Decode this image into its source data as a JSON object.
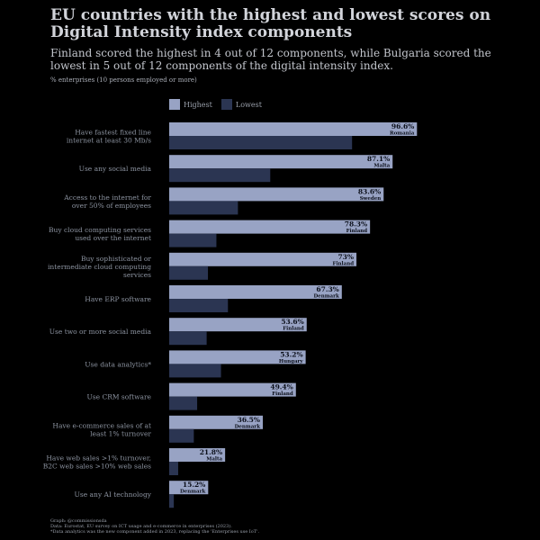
{
  "title": "EU countries with the highest and lowest scores on Digital Intensity index components",
  "subtitle": "Finland scored the highest in 4 out of 12 components, while Bulgaria scored the lowest in 5 out of 12 components of the digital intensity index.",
  "unit_note": "% enterprises (10 persons employed or more)",
  "colors": {
    "highest": "#98a3c4",
    "lowest": "#2b3552",
    "label_text": "#8c93a0"
  },
  "legend": {
    "highest": "Highest",
    "lowest": "Lowest"
  },
  "footer": {
    "graph": "Graph: @commissionsda",
    "data": "Data: Eurostat, EU survey on ICT usage and e-commerce in enterprises (2023).",
    "note": "*Data analytics was the new component added in 2023, replacing the 'Enterprises use IoT'."
  },
  "chart_data": {
    "type": "bar",
    "orientation": "horizontal",
    "xlim": [
      0,
      100
    ],
    "grid": false,
    "legend_position": "top",
    "categories": [
      "Have fastest fixed line internet at least 30 Mb/s",
      "Use any social media",
      "Access to the internet for over 50% of employees",
      "Buy cloud computing services used over the internet",
      "Buy sophisticated or intermediate cloud computing services",
      "Have ERP software",
      "Use two or more social media",
      "Use data analytics*",
      "Use CRM software",
      "Have e-commerce sales of at least 1% turnover",
      "Have web sales >1% turnover, B2C web sales >10% web sales",
      "Use any AI technology"
    ],
    "series": [
      {
        "name": "Highest",
        "values": [
          96.6,
          87.1,
          83.6,
          78.3,
          73,
          67.3,
          53.6,
          53.2,
          49.4,
          36.5,
          21.8,
          15.2
        ],
        "value_labels": [
          "96.6%",
          "87.1%",
          "83.6%",
          "78.3%",
          "73%",
          "67.3%",
          "53.6%",
          "53.2%",
          "49.4%",
          "36.5%",
          "21.8%",
          "15.2%"
        ],
        "countries": [
          "Romania",
          "Malta",
          "Sweden",
          "Finland",
          "Finland",
          "Denmark",
          "Finland",
          "Hungary",
          "Finland",
          "Denmark",
          "Malta",
          "Denmark"
        ]
      },
      {
        "name": "Lowest",
        "values": [
          71.3,
          39.4,
          26.8,
          18.4,
          15.1,
          22.9,
          14.6,
          20.2,
          10.9,
          9.6,
          3.5,
          1.8
        ]
      }
    ]
  }
}
